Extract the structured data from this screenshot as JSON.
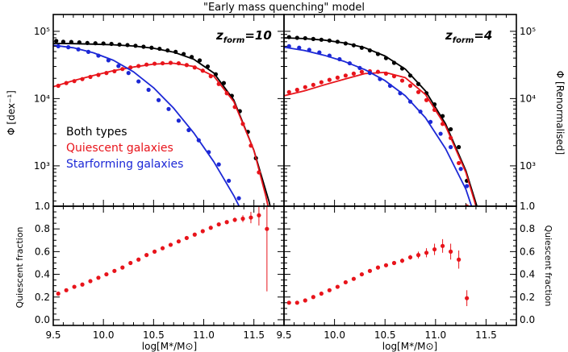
{
  "colors": {
    "both": "#000000",
    "quiescent": "#e8141b",
    "starforming": "#1c28d6"
  },
  "title": "\"Early mass quenching\" model",
  "legend": [
    {
      "label": "Both types",
      "color": "#000000"
    },
    {
      "label": "Quiescent galaxies",
      "color": "#e8141b"
    },
    {
      "label": "Starforming galaxies",
      "color": "#1c28d6"
    }
  ],
  "labels": {
    "y_left_top": "Φ [dex⁻¹]",
    "y_right_top": "Φ [Renormalised]",
    "y_left_bottom": "Quiescent fraction",
    "y_right_bottom": "Quiescent fraction",
    "x_left": "log[M*/M⊙]",
    "x_right": "log[M*/M⊙]"
  },
  "panels": {
    "left": {
      "zform_base": "z",
      "zform_sub": "form",
      "zform_value": "=10"
    },
    "right": {
      "zform_base": "z",
      "zform_sub": "form",
      "zform_value": "=4"
    }
  },
  "ticks": {
    "x": [
      "9.5",
      "10.0",
      "10.5",
      "11.0",
      "11.5"
    ],
    "y_top": [
      "10³",
      "10⁴",
      "10⁵"
    ],
    "y_bottom": [
      "0.0",
      "0.2",
      "0.4",
      "0.6",
      "0.8",
      "1.0"
    ]
  },
  "chart_data": [
    {
      "type": "line",
      "panel": "top-left",
      "xlim": [
        9.5,
        11.8
      ],
      "ylim_log10": [
        2.4,
        5.25
      ],
      "yscale": "log",
      "series": [
        {
          "name": "Both types",
          "line_x": [
            9.5,
            9.7,
            9.9,
            10.1,
            10.3,
            10.5,
            10.7,
            10.9,
            11.1,
            11.3,
            11.5,
            11.65,
            11.75
          ],
          "line_y": [
            66000,
            65500,
            64500,
            63000,
            60500,
            56000,
            49000,
            38500,
            24000,
            9500,
            1700,
            300,
            70
          ],
          "points_x": [
            9.53,
            9.6,
            9.68,
            9.76,
            9.84,
            9.92,
            10.0,
            10.08,
            10.16,
            10.24,
            10.32,
            10.4,
            10.48,
            10.56,
            10.64,
            10.72,
            10.8,
            10.88,
            10.96,
            11.04,
            11.12,
            11.2,
            11.28,
            11.36,
            11.44,
            11.52
          ],
          "points_y": [
            72000,
            70000,
            69500,
            68500,
            67000,
            66500,
            66000,
            65000,
            63500,
            62500,
            61000,
            59000,
            57000,
            55000,
            52000,
            49500,
            46000,
            41500,
            37000,
            30000,
            23000,
            17000,
            11000,
            6500,
            3200,
            1300
          ]
        },
        {
          "name": "Quiescent galaxies",
          "line_x": [
            9.5,
            9.7,
            9.9,
            10.1,
            10.3,
            10.5,
            10.7,
            10.9,
            11.1,
            11.3,
            11.5,
            11.62,
            11.72
          ],
          "line_y": [
            15000,
            18500,
            22000,
            26000,
            29500,
            32500,
            33500,
            30000,
            21500,
            9000,
            1700,
            350,
            70
          ],
          "points_x": [
            9.55,
            9.63,
            9.71,
            9.79,
            9.87,
            9.95,
            10.03,
            10.11,
            10.19,
            10.27,
            10.35,
            10.43,
            10.51,
            10.59,
            10.67,
            10.75,
            10.83,
            10.91,
            10.99,
            11.07,
            11.15,
            11.23,
            11.31,
            11.39,
            11.47,
            11.55
          ],
          "points_y": [
            15500,
            17000,
            18200,
            19500,
            21000,
            22500,
            24000,
            25500,
            27500,
            29000,
            30500,
            32000,
            33000,
            33500,
            34000,
            33500,
            31500,
            29000,
            26000,
            21500,
            16500,
            12000,
            7500,
            4200,
            2000,
            800
          ]
        },
        {
          "name": "Starforming galaxies",
          "line_x": [
            9.5,
            9.7,
            9.9,
            10.1,
            10.3,
            10.5,
            10.7,
            10.9,
            11.1,
            11.3,
            11.45,
            11.55
          ],
          "line_y": [
            62000,
            57000,
            48000,
            37000,
            25000,
            14500,
            7200,
            3100,
            1150,
            360,
            130,
            60
          ],
          "points_x": [
            9.55,
            9.65,
            9.75,
            9.85,
            9.95,
            10.05,
            10.15,
            10.25,
            10.35,
            10.45,
            10.55,
            10.65,
            10.75,
            10.85,
            10.95,
            11.05,
            11.15,
            11.25,
            11.35,
            11.45
          ],
          "points_y": [
            60000,
            58000,
            54000,
            49500,
            43500,
            37000,
            30500,
            24000,
            18000,
            13500,
            9500,
            7000,
            4700,
            3400,
            2400,
            1600,
            1050,
            600,
            330,
            150
          ]
        }
      ]
    },
    {
      "type": "line",
      "panel": "top-right",
      "xlim": [
        9.5,
        11.8
      ],
      "ylim_log10": [
        2.4,
        5.25
      ],
      "yscale": "log",
      "series": [
        {
          "name": "Both types",
          "line_x": [
            9.5,
            9.7,
            9.9,
            10.1,
            10.3,
            10.5,
            10.7,
            10.9,
            11.1,
            11.3,
            11.45,
            11.55
          ],
          "line_y": [
            80000,
            78000,
            74000,
            67000,
            57000,
            43000,
            27500,
            13000,
            4200,
            850,
            160,
            45
          ],
          "points_x": [
            9.55,
            9.63,
            9.71,
            9.79,
            9.87,
            9.95,
            10.03,
            10.11,
            10.19,
            10.27,
            10.35,
            10.43,
            10.51,
            10.59,
            10.67,
            10.75,
            10.83,
            10.91,
            10.99,
            11.07,
            11.15,
            11.23,
            11.31
          ],
          "points_y": [
            82000,
            80000,
            79000,
            77000,
            75000,
            73000,
            70000,
            66000,
            62000,
            57000,
            52000,
            46000,
            40000,
            34000,
            28000,
            22000,
            16500,
            12000,
            8200,
            5500,
            3500,
            1900,
            600
          ]
        },
        {
          "name": "Quiescent galaxies",
          "line_x": [
            9.5,
            9.7,
            9.9,
            10.1,
            10.3,
            10.5,
            10.7,
            10.9,
            11.1,
            11.3,
            11.42,
            11.52
          ],
          "line_y": [
            11000,
            13000,
            16000,
            19500,
            23500,
            24500,
            20500,
            11500,
            3900,
            800,
            200,
            60
          ],
          "points_x": [
            9.55,
            9.63,
            9.71,
            9.79,
            9.87,
            9.95,
            10.03,
            10.11,
            10.19,
            10.27,
            10.35,
            10.43,
            10.51,
            10.59,
            10.67,
            10.75,
            10.83,
            10.91,
            10.99,
            11.07,
            11.15,
            11.23,
            11.31
          ],
          "points_y": [
            12500,
            13500,
            14800,
            16000,
            17500,
            19000,
            20500,
            22000,
            23500,
            25000,
            25500,
            25000,
            23500,
            21500,
            18500,
            15500,
            12500,
            9500,
            6800,
            4200,
            2600,
            1100,
            250
          ]
        },
        {
          "name": "Starforming galaxies",
          "line_x": [
            9.5,
            9.7,
            9.9,
            10.1,
            10.3,
            10.5,
            10.7,
            10.9,
            11.1,
            11.3,
            11.42,
            11.5
          ],
          "line_y": [
            58000,
            52000,
            44000,
            35500,
            27000,
            18500,
            11000,
            5200,
            1800,
            450,
            130,
            50
          ],
          "points_x": [
            9.55,
            9.65,
            9.75,
            9.85,
            9.95,
            10.05,
            10.15,
            10.25,
            10.35,
            10.45,
            10.55,
            10.65,
            10.75,
            10.85,
            10.95,
            11.05,
            11.15,
            11.25,
            11.31
          ],
          "points_y": [
            60000,
            57000,
            53000,
            48500,
            43500,
            38500,
            33500,
            28500,
            24000,
            19500,
            15500,
            12000,
            9000,
            6400,
            4500,
            3000,
            1900,
            900,
            500
          ]
        }
      ]
    },
    {
      "type": "scatter",
      "panel": "bottom-left",
      "xlim": [
        9.5,
        11.8
      ],
      "ylim": [
        -0.05,
        1.0
      ],
      "series": [
        {
          "name": "Quiescent fraction",
          "x": [
            9.55,
            9.63,
            9.71,
            9.79,
            9.87,
            9.95,
            10.03,
            10.11,
            10.19,
            10.27,
            10.35,
            10.43,
            10.51,
            10.59,
            10.67,
            10.75,
            10.83,
            10.91,
            10.99,
            11.07,
            11.15,
            11.23,
            11.31,
            11.39,
            11.47,
            11.55,
            11.63
          ],
          "y": [
            0.23,
            0.26,
            0.29,
            0.31,
            0.34,
            0.37,
            0.4,
            0.43,
            0.46,
            0.5,
            0.53,
            0.57,
            0.6,
            0.63,
            0.66,
            0.69,
            0.72,
            0.75,
            0.78,
            0.81,
            0.84,
            0.86,
            0.88,
            0.89,
            0.9,
            0.92,
            0.8
          ],
          "err": [
            0,
            0,
            0,
            0,
            0,
            0,
            0,
            0,
            0,
            0,
            0,
            0,
            0,
            0,
            0,
            0,
            0,
            0,
            0,
            0.01,
            0.01,
            0.015,
            0.02,
            0.03,
            0.05,
            0.09,
            0.55
          ]
        }
      ]
    },
    {
      "type": "scatter",
      "panel": "bottom-right",
      "xlim": [
        9.5,
        11.8
      ],
      "ylim": [
        -0.05,
        1.0
      ],
      "series": [
        {
          "name": "Quiescent fraction",
          "x": [
            9.55,
            9.63,
            9.71,
            9.79,
            9.87,
            9.95,
            10.03,
            10.11,
            10.19,
            10.27,
            10.35,
            10.43,
            10.51,
            10.59,
            10.67,
            10.75,
            10.83,
            10.91,
            10.99,
            11.07,
            11.15,
            11.23,
            11.31
          ],
          "y": [
            0.15,
            0.15,
            0.17,
            0.2,
            0.23,
            0.26,
            0.29,
            0.33,
            0.36,
            0.4,
            0.43,
            0.46,
            0.48,
            0.5,
            0.52,
            0.55,
            0.57,
            0.59,
            0.62,
            0.65,
            0.6,
            0.53,
            0.19
          ],
          "err": [
            0,
            0,
            0,
            0,
            0,
            0,
            0,
            0,
            0,
            0,
            0,
            0,
            0,
            0.01,
            0.02,
            0.02,
            0.03,
            0.04,
            0.05,
            0.06,
            0.07,
            0.08,
            0.07
          ]
        }
      ]
    }
  ]
}
